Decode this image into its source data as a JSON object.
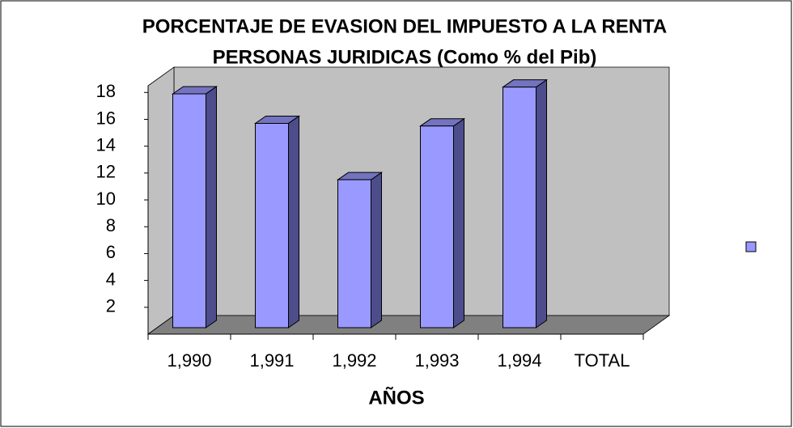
{
  "chart_data": {
    "type": "bar3d",
    "title": [
      "PORCENTAJE DE EVASION DEL IMPUESTO A LA RENTA",
      "PERSONAS JURIDICAS (Como % del Pib)"
    ],
    "x_label": "AÑOS",
    "categories": [
      "1,990",
      "1,991",
      "1,992",
      "1,993",
      "1,994",
      "TOTAL"
    ],
    "values": [
      17.9,
      15.7,
      11.5,
      15.5,
      18.4,
      null
    ],
    "color": "#9999ff",
    "ylim": [
      0,
      18.5
    ],
    "yticks": [
      2,
      4,
      6,
      8,
      10,
      12,
      14,
      16,
      18
    ],
    "legend": "right"
  }
}
